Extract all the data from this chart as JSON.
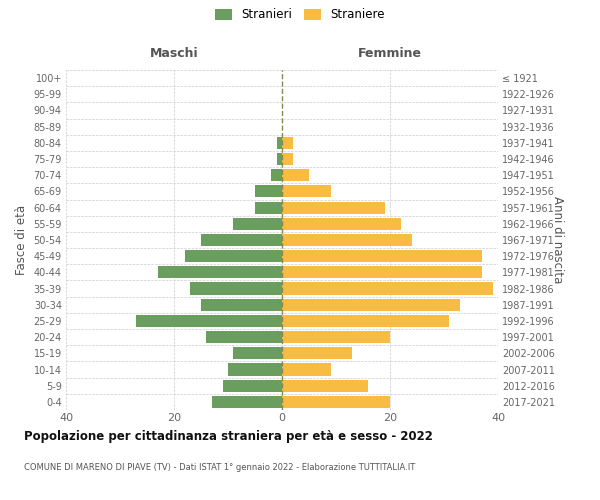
{
  "age_groups": [
    "0-4",
    "5-9",
    "10-14",
    "15-19",
    "20-24",
    "25-29",
    "30-34",
    "35-39",
    "40-44",
    "45-49",
    "50-54",
    "55-59",
    "60-64",
    "65-69",
    "70-74",
    "75-79",
    "80-84",
    "85-89",
    "90-94",
    "95-99",
    "100+"
  ],
  "birth_years": [
    "2017-2021",
    "2012-2016",
    "2007-2011",
    "2002-2006",
    "1997-2001",
    "1992-1996",
    "1987-1991",
    "1982-1986",
    "1977-1981",
    "1972-1976",
    "1967-1971",
    "1962-1966",
    "1957-1961",
    "1952-1956",
    "1947-1951",
    "1942-1946",
    "1937-1941",
    "1932-1936",
    "1927-1931",
    "1922-1926",
    "≤ 1921"
  ],
  "males": [
    13,
    11,
    10,
    9,
    14,
    27,
    15,
    17,
    23,
    18,
    15,
    9,
    5,
    5,
    2,
    1,
    1,
    0,
    0,
    0,
    0
  ],
  "females": [
    20,
    16,
    9,
    13,
    20,
    31,
    33,
    39,
    37,
    37,
    24,
    22,
    19,
    9,
    5,
    2,
    2,
    0,
    0,
    0,
    0
  ],
  "male_color": "#6a9e5e",
  "female_color": "#f9bc42",
  "center_line_color": "#888855",
  "grid_color": "#cccccc",
  "title": "Popolazione per cittadinanza straniera per età e sesso - 2022",
  "subtitle": "COMUNE DI MARENO DI PIAVE (TV) - Dati ISTAT 1° gennaio 2022 - Elaborazione TUTTITALIA.IT",
  "ylabel_left": "Fasce di età",
  "ylabel_right": "Anni di nascita",
  "legend_male": "Stranieri",
  "legend_female": "Straniere",
  "xlim": 40,
  "background_color": "#ffffff",
  "maschi_label": "Maschi",
  "femmine_label": "Femmine",
  "figwidth": 6.0,
  "figheight": 5.0,
  "dpi": 100
}
